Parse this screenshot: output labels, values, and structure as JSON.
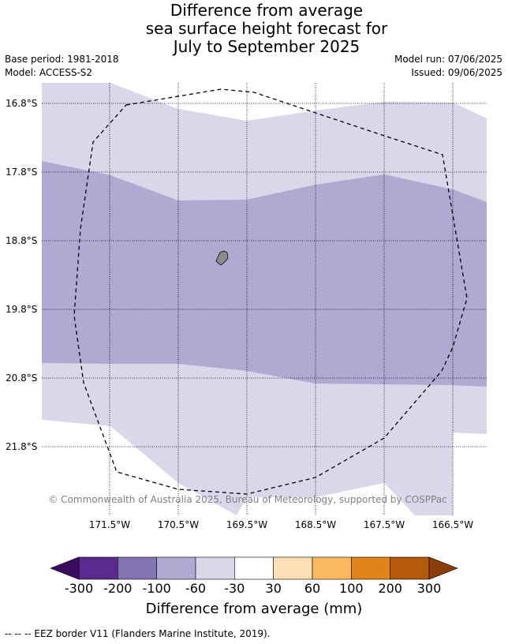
{
  "title": {
    "line1": "Difference from average",
    "line2": "sea surface height forecast for",
    "line3": "July to September 2025"
  },
  "meta": {
    "base_period": "Base period: 1981-2018",
    "model": "Model: ACCESS-S2",
    "model_run": "Model run: 07/06/2025",
    "issued": "Issued: 09/06/2025"
  },
  "map": {
    "lat_labels": [
      "16.8°S",
      "17.8°S",
      "18.8°S",
      "19.8°S",
      "20.8°S",
      "21.8°S"
    ],
    "lon_labels": [
      "171.5°W",
      "170.5°W",
      "169.5°W",
      "168.5°W",
      "167.5°W",
      "166.5°W"
    ],
    "copyright": "© Commonwealth of Australia 2025, Bureau of Meteorology, supported by COSPPac",
    "region_colors": {
      "light": "#d8d8ea",
      "medium": "#b0aad2"
    }
  },
  "colorbar": {
    "label": "Difference from average (mm)",
    "ticks": [
      "-300",
      "-200",
      "-100",
      "-60",
      "-30",
      "30",
      "60",
      "100",
      "200",
      "300"
    ],
    "colors": [
      "#5a2a8e",
      "#8275b1",
      "#b0aad2",
      "#d8d8ea",
      "#ffffff",
      "#fde0b4",
      "#fbb862",
      "#e2841a",
      "#b55a0a"
    ],
    "under_color": "#3c0c60",
    "over_color": "#8b3d0a"
  },
  "footnote": "--  --  -- EEZ border V11 (Flanders Marine Institute, 2019)."
}
